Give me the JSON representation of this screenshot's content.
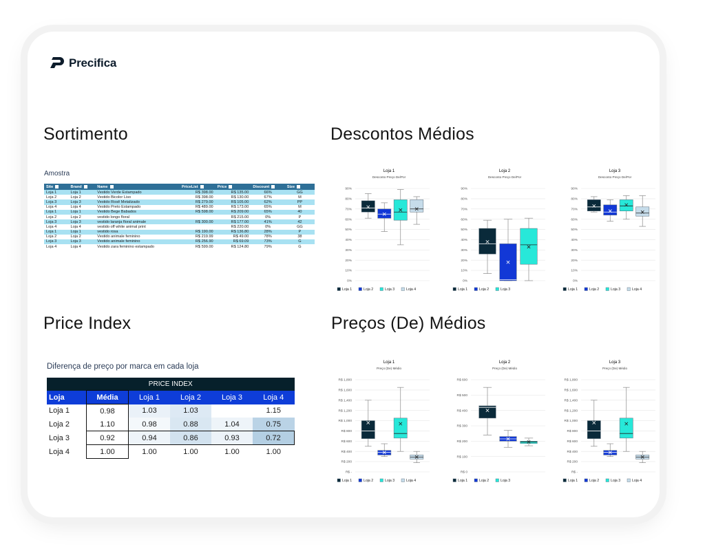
{
  "brand": {
    "name": "Precifica"
  },
  "sections": {
    "sortimento": "Sortimento",
    "descontos": "Descontos Médios",
    "price_index": "Price Index",
    "precos": "Preços (De) Médios"
  },
  "sample_table": {
    "caption": "Amostra",
    "headers": [
      "Site",
      "Brand",
      "Name",
      "PriceList",
      "Price",
      "Discount",
      "Size"
    ],
    "rows": [
      [
        "Loja 1",
        "Loja 1",
        "Vestido Verde Estampado",
        "R$ 398.00",
        "R$ 135.00",
        "66%",
        "GG"
      ],
      [
        "Loja 2",
        "Loja 2",
        "Vestido Bicolor Liso",
        "R$ 398.00",
        "R$ 130.00",
        "67%",
        "M"
      ],
      [
        "Loja 3",
        "Loja 3",
        "Vestido Rosê Metalizado",
        "R$ 279.00",
        "R$ 105.00",
        "62%",
        "PP"
      ],
      [
        "Loja 4",
        "Loja 4",
        "Vestido Preto Estampado",
        "R$ 489.00",
        "R$ 173.00",
        "65%",
        "M"
      ],
      [
        "Loja 1",
        "Loja 1",
        "Vestido Bege Babados",
        "R$ 598.00",
        "R$ 209.00",
        "65%",
        "40"
      ],
      [
        "Loja 2",
        "Loja 2",
        "vestido longo floral",
        "",
        "R$ 215.00",
        "0%",
        "P"
      ],
      [
        "Loja 3",
        "Loja 3",
        "vestido laranja floral animale",
        "R$ 300.00",
        "R$ 177.00",
        "41%",
        "42"
      ],
      [
        "Loja 4",
        "Loja 4",
        "vestido off white animal print",
        "",
        "R$ 220.00",
        "0%",
        "GG"
      ],
      [
        "Loja 1",
        "Loja 1",
        "vestido rosa",
        "R$ 190.00",
        "R$ 136.80",
        "28%",
        "P"
      ],
      [
        "Loja 2",
        "Loja 2",
        "Vestido animale feminino",
        "R$ 219.99",
        "R$ 49.00",
        "78%",
        "38"
      ],
      [
        "Loja 3",
        "Loja 3",
        "Vestido animale feminino",
        "R$ 256.90",
        "R$ 69.09",
        "73%",
        "G"
      ],
      [
        "Loja 4",
        "Loja 4",
        "Vestido zara feminino estampado",
        "R$ 599.00",
        "R$ 124.80",
        "79%",
        "G"
      ]
    ]
  },
  "price_index": {
    "caption": "Diferença de preço por marca em cada loja",
    "title": "PRICE INDEX",
    "col_headers": [
      "Loja",
      "Média",
      "Loja 1",
      "Loja 2",
      "Loja 3",
      "Loja 4"
    ],
    "rows": [
      {
        "label": "Loja 1",
        "values": [
          "0.98",
          "1.03",
          "1.03",
          "",
          "1.15"
        ]
      },
      {
        "label": "Loja 2",
        "values": [
          "1.10",
          "0.98",
          "0.88",
          "1.04",
          "0.75"
        ]
      },
      {
        "label": "Loja 3",
        "values": [
          "0.92",
          "0.94",
          "0.86",
          "0.93",
          "0.72"
        ]
      },
      {
        "label": "Loja 4",
        "values": [
          "1.00",
          "1.00",
          "1.00",
          "1.00",
          "1.00"
        ]
      }
    ]
  },
  "colors": {
    "loja1": "#0a2a3a",
    "loja2": "#1238d6",
    "loja3": "#27e8d9",
    "loja4": "#c6dcea",
    "index_header": "#06202b",
    "index_blue": "#0e3dd8"
  },
  "chart_data": [
    {
      "type": "box",
      "title": "Loja 1",
      "subtitle": "Desconto Preço De/Por",
      "ylim": [
        0,
        90
      ],
      "yticks": [
        "0%",
        "10%",
        "20%",
        "30%",
        "40%",
        "50%",
        "60%",
        "70%",
        "80%",
        "90%"
      ],
      "legend": [
        "Loja 1",
        "Loja 2",
        "Loja 3",
        "Loja 4"
      ],
      "series": [
        {
          "name": "Loja 1",
          "min": 61,
          "q1": 67,
          "median": 71,
          "q3": 78,
          "max": 85,
          "mean": 72
        },
        {
          "name": "Loja 2",
          "min": 48,
          "q1": 61,
          "median": 65,
          "q3": 70,
          "max": 76,
          "mean": 65
        },
        {
          "name": "Loja 3",
          "min": 35,
          "q1": 59,
          "median": 67,
          "q3": 79,
          "max": 89,
          "mean": 69
        },
        {
          "name": "Loja 4",
          "min": 55,
          "q1": 67,
          "median": 70,
          "q3": 79,
          "max": 82,
          "mean": 70
        }
      ]
    },
    {
      "type": "box",
      "title": "Loja 2",
      "subtitle": "Desconto Preço De/Por",
      "ylim": [
        0,
        90
      ],
      "yticks": [
        "0%",
        "10%",
        "20%",
        "30%",
        "40%",
        "50%",
        "60%",
        "70%",
        "80%",
        "90%"
      ],
      "legend": [
        "Loja 1",
        "Loja 2",
        "Loja 3"
      ],
      "series": [
        {
          "name": "Loja 1",
          "min": 7,
          "q1": 26,
          "median": 36,
          "q3": 51,
          "max": 59,
          "mean": 38
        },
        {
          "name": "Loja 2",
          "min": 0,
          "q1": 0,
          "median": 1,
          "q3": 36,
          "max": 60,
          "mean": 18
        },
        {
          "name": "Loja 3",
          "min": 0,
          "q1": 16,
          "median": 35,
          "q3": 51,
          "max": 61,
          "mean": 33
        }
      ]
    },
    {
      "type": "box",
      "title": "Loja 3",
      "subtitle": "Desconto Preço De/Por",
      "ylim": [
        0,
        90
      ],
      "yticks": [
        "0%",
        "10%",
        "20%",
        "30%",
        "40%",
        "50%",
        "60%",
        "70%",
        "80%",
        "90%"
      ],
      "legend": [
        "Loja 1",
        "Loja 2",
        "Loja 3",
        "Loja 4"
      ],
      "series": [
        {
          "name": "Loja 1",
          "min": 67,
          "q1": 68,
          "median": 72,
          "q3": 79,
          "max": 82,
          "mean": 73
        },
        {
          "name": "Loja 2",
          "min": 58,
          "q1": 64,
          "median": 67,
          "q3": 74,
          "max": 79,
          "mean": 68
        },
        {
          "name": "Loja 3",
          "min": 60,
          "q1": 68,
          "median": 73,
          "q3": 79,
          "max": 83,
          "mean": 74
        },
        {
          "name": "Loja 4",
          "min": 53,
          "q1": 63,
          "median": 66,
          "q3": 72,
          "max": 83,
          "mean": 67
        }
      ]
    },
    {
      "type": "box",
      "title": "Loja 1",
      "subtitle": "Preço (De) Médio",
      "ylim": [
        0,
        1800
      ],
      "yticks": [
        "R$ -",
        "R$ 200",
        "R$ 400",
        "R$ 600",
        "R$ 800",
        "R$ 1,000",
        "R$ 1,200",
        "R$ 1,400",
        "R$ 1,600",
        "R$ 1,800"
      ],
      "legend": [
        "Loja 1",
        "Loja 2",
        "Loja 3",
        "Loja 4"
      ],
      "series": [
        {
          "name": "Loja 1",
          "min": 500,
          "q1": 650,
          "median": 800,
          "q3": 1000,
          "max": 1400,
          "mean": 960
        },
        {
          "name": "Loja 2",
          "min": 300,
          "q1": 330,
          "median": 380,
          "q3": 420,
          "max": 550,
          "mean": 380
        },
        {
          "name": "Loja 3",
          "min": 400,
          "q1": 660,
          "median": 750,
          "q3": 1050,
          "max": 1650,
          "mean": 940
        },
        {
          "name": "Loja 4",
          "min": 180,
          "q1": 250,
          "median": 290,
          "q3": 330,
          "max": 400,
          "mean": 290
        }
      ]
    },
    {
      "type": "box",
      "title": "Loja 2",
      "subtitle": "Preço (De) Médio",
      "ylim": [
        0,
        600
      ],
      "yticks": [
        "R$ 0",
        "R$ 100",
        "R$ 200",
        "R$ 300",
        "R$ 400",
        "R$ 500",
        "R$ 600"
      ],
      "legend": [
        "Loja 1",
        "Loja 2",
        "Loja 3"
      ],
      "series": [
        {
          "name": "Loja 1",
          "min": 240,
          "q1": 350,
          "median": 420,
          "q3": 430,
          "max": 550,
          "mean": 400
        },
        {
          "name": "Loja 2",
          "min": 160,
          "q1": 200,
          "median": 215,
          "q3": 230,
          "max": 270,
          "mean": 215
        },
        {
          "name": "Loja 3",
          "min": 170,
          "q1": 185,
          "median": 195,
          "q3": 200,
          "max": 220,
          "mean": 195
        }
      ]
    },
    {
      "type": "box",
      "title": "Loja 3",
      "subtitle": "Preço (De) Médio",
      "ylim": [
        0,
        1800
      ],
      "yticks": [
        "R$ -",
        "R$ 200",
        "R$ 400",
        "R$ 600",
        "R$ 800",
        "R$ 1,000",
        "R$ 1,200",
        "R$ 1,400",
        "R$ 1,600",
        "R$ 1,800"
      ],
      "legend": [
        "Loja 1",
        "Loja 2",
        "Loja 3",
        "Loja 4"
      ],
      "series": [
        {
          "name": "Loja 1",
          "min": 500,
          "q1": 650,
          "median": 800,
          "q3": 1000,
          "max": 1400,
          "mean": 960
        },
        {
          "name": "Loja 2",
          "min": 300,
          "q1": 330,
          "median": 380,
          "q3": 420,
          "max": 550,
          "mean": 380
        },
        {
          "name": "Loja 3",
          "min": 400,
          "q1": 660,
          "median": 750,
          "q3": 1050,
          "max": 1650,
          "mean": 940
        },
        {
          "name": "Loja 4",
          "min": 180,
          "q1": 250,
          "median": 290,
          "q3": 330,
          "max": 400,
          "mean": 290
        }
      ]
    }
  ]
}
